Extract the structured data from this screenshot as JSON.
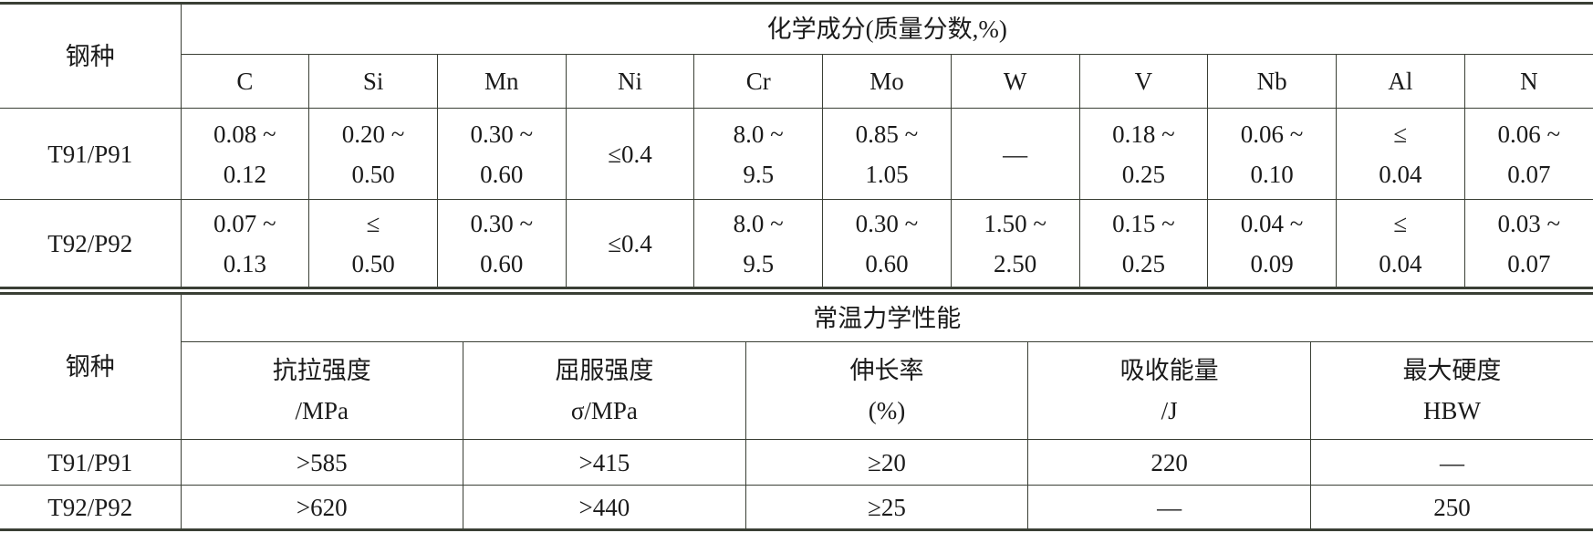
{
  "table1": {
    "header_label": "钢种",
    "group_header": "化学成分(质量分数,%)",
    "columns": [
      "C",
      "Si",
      "Mn",
      "Ni",
      "Cr",
      "Mo",
      "W",
      "V",
      "Nb",
      "Al",
      "N"
    ],
    "rows": [
      {
        "name": "T91/P91",
        "cells": [
          [
            "0.08 ~",
            "0.12"
          ],
          [
            "0.20 ~",
            "0.50"
          ],
          [
            "0.30 ~",
            "0.60"
          ],
          [
            "≤0.4"
          ],
          [
            "8.0 ~",
            "9.5"
          ],
          [
            "0.85 ~",
            "1.05"
          ],
          [
            "—"
          ],
          [
            "0.18 ~",
            "0.25"
          ],
          [
            "0.06 ~",
            "0.10"
          ],
          [
            "≤",
            "0.04"
          ],
          [
            "0.06 ~",
            "0.07"
          ]
        ]
      },
      {
        "name": "T92/P92",
        "cells": [
          [
            "0.07 ~",
            "0.13"
          ],
          [
            "≤",
            "0.50"
          ],
          [
            "0.30 ~",
            "0.60"
          ],
          [
            "≤0.4"
          ],
          [
            "8.0 ~",
            "9.5"
          ],
          [
            "0.30 ~",
            "0.60"
          ],
          [
            "1.50 ~",
            "2.50"
          ],
          [
            "0.15 ~",
            "0.25"
          ],
          [
            "0.04 ~",
            "0.09"
          ],
          [
            "≤",
            "0.04"
          ],
          [
            "0.03 ~",
            "0.07"
          ]
        ]
      }
    ]
  },
  "table2": {
    "header_label": "钢种",
    "group_header": "常温力学性能",
    "columns": [
      [
        "抗拉强度",
        "/MPa"
      ],
      [
        "屈服强度",
        "σ/MPa"
      ],
      [
        "伸长率",
        "(%)"
      ],
      [
        "吸收能量",
        "/J"
      ],
      [
        "最大硬度",
        "HBW"
      ]
    ],
    "rows": [
      {
        "name": "T91/P91",
        "cells": [
          [
            ">585"
          ],
          [
            ">415"
          ],
          [
            "≥20"
          ],
          [
            "220"
          ],
          [
            "—"
          ]
        ]
      },
      {
        "name": "T92/P92",
        "cells": [
          [
            ">620"
          ],
          [
            ">440"
          ],
          [
            "≥25"
          ],
          [
            "—"
          ],
          [
            "250"
          ]
        ]
      }
    ]
  }
}
